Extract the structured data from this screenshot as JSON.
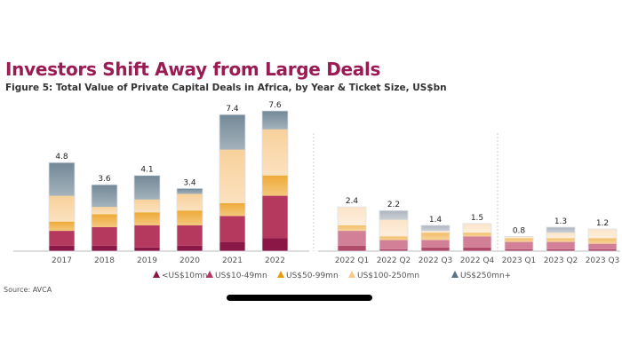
{
  "header": {
    "title": "Investors Shift Away from Large Deals",
    "subtitle": "Figure 5: Total Value of Private Capital Deals in Africa, by Year & Ticket Size, US$bn"
  },
  "source": "Source: AVCA",
  "chart_data": {
    "type": "bar",
    "stacked": true,
    "title": "Figure 5: Total Value of Private Capital Deals in Africa, by Year & Ticket Size, US$bn",
    "xlabel": "",
    "ylabel": "",
    "ylim": [
      0,
      8
    ],
    "grid": false,
    "legend_position": "bottom",
    "series_colors": [
      "#8a1746",
      "#b5395f",
      "#eb9b14",
      "#f7c98a",
      "#5a7384"
    ],
    "quarter_series_colors": [
      "#b24a6a",
      "#d27f98",
      "#f0b24c",
      "#fbe0c0",
      "#a0a8b4"
    ],
    "series_names": [
      "<US$10mn",
      "US$10-49mn",
      "US$50-99mn",
      "US$100-250mn",
      "US$250mn+"
    ],
    "panels": [
      {
        "categories": [
          "2017",
          "2018",
          "2019",
          "2020",
          "2021",
          "2022"
        ],
        "totals": [
          "4.8",
          "3.6",
          "4.1",
          "3.4",
          "7.4",
          "7.6"
        ],
        "series": [
          {
            "name": "<US$10mn",
            "values": [
              0.3,
              0.3,
              0.2,
              0.3,
              0.5,
              0.7
            ]
          },
          {
            "name": "US$10-49mn",
            "values": [
              0.8,
              1.0,
              1.2,
              1.1,
              1.4,
              2.3
            ]
          },
          {
            "name": "US$50-99mn",
            "values": [
              0.5,
              0.7,
              0.7,
              0.8,
              0.7,
              1.1
            ]
          },
          {
            "name": "US$100-250mn",
            "values": [
              1.4,
              0.4,
              0.7,
              0.9,
              2.9,
              2.5
            ]
          },
          {
            "name": "US$250mn+",
            "values": [
              1.8,
              1.2,
              1.3,
              0.3,
              1.9,
              1.0
            ]
          }
        ]
      },
      {
        "categories": [
          "2022 Q1",
          "2022 Q2",
          "2022 Q3",
          "2022 Q4",
          "2023 Q1",
          "2023 Q2",
          "2023 Q3"
        ],
        "totals": [
          "2.4",
          "2.2",
          "1.4",
          "1.5",
          "0.8",
          "1.3",
          "1.2"
        ],
        "series": [
          {
            "name": "<US$10mn",
            "values": [
              0.3,
              0.1,
              0.2,
              0.2,
              0.1,
              0.1,
              0.1
            ]
          },
          {
            "name": "US$10-49mn",
            "values": [
              0.8,
              0.5,
              0.4,
              0.6,
              0.4,
              0.4,
              0.3
            ]
          },
          {
            "name": "US$50-99mn",
            "values": [
              0.3,
              0.2,
              0.4,
              0.2,
              0.2,
              0.2,
              0.3
            ]
          },
          {
            "name": "US$100-250mn",
            "values": [
              1.0,
              0.9,
              0.1,
              0.5,
              0.1,
              0.3,
              0.5
            ]
          },
          {
            "name": "US$250mn+",
            "values": [
              0.0,
              0.5,
              0.3,
              0.0,
              0.0,
              0.3,
              0.0
            ]
          }
        ]
      }
    ]
  }
}
